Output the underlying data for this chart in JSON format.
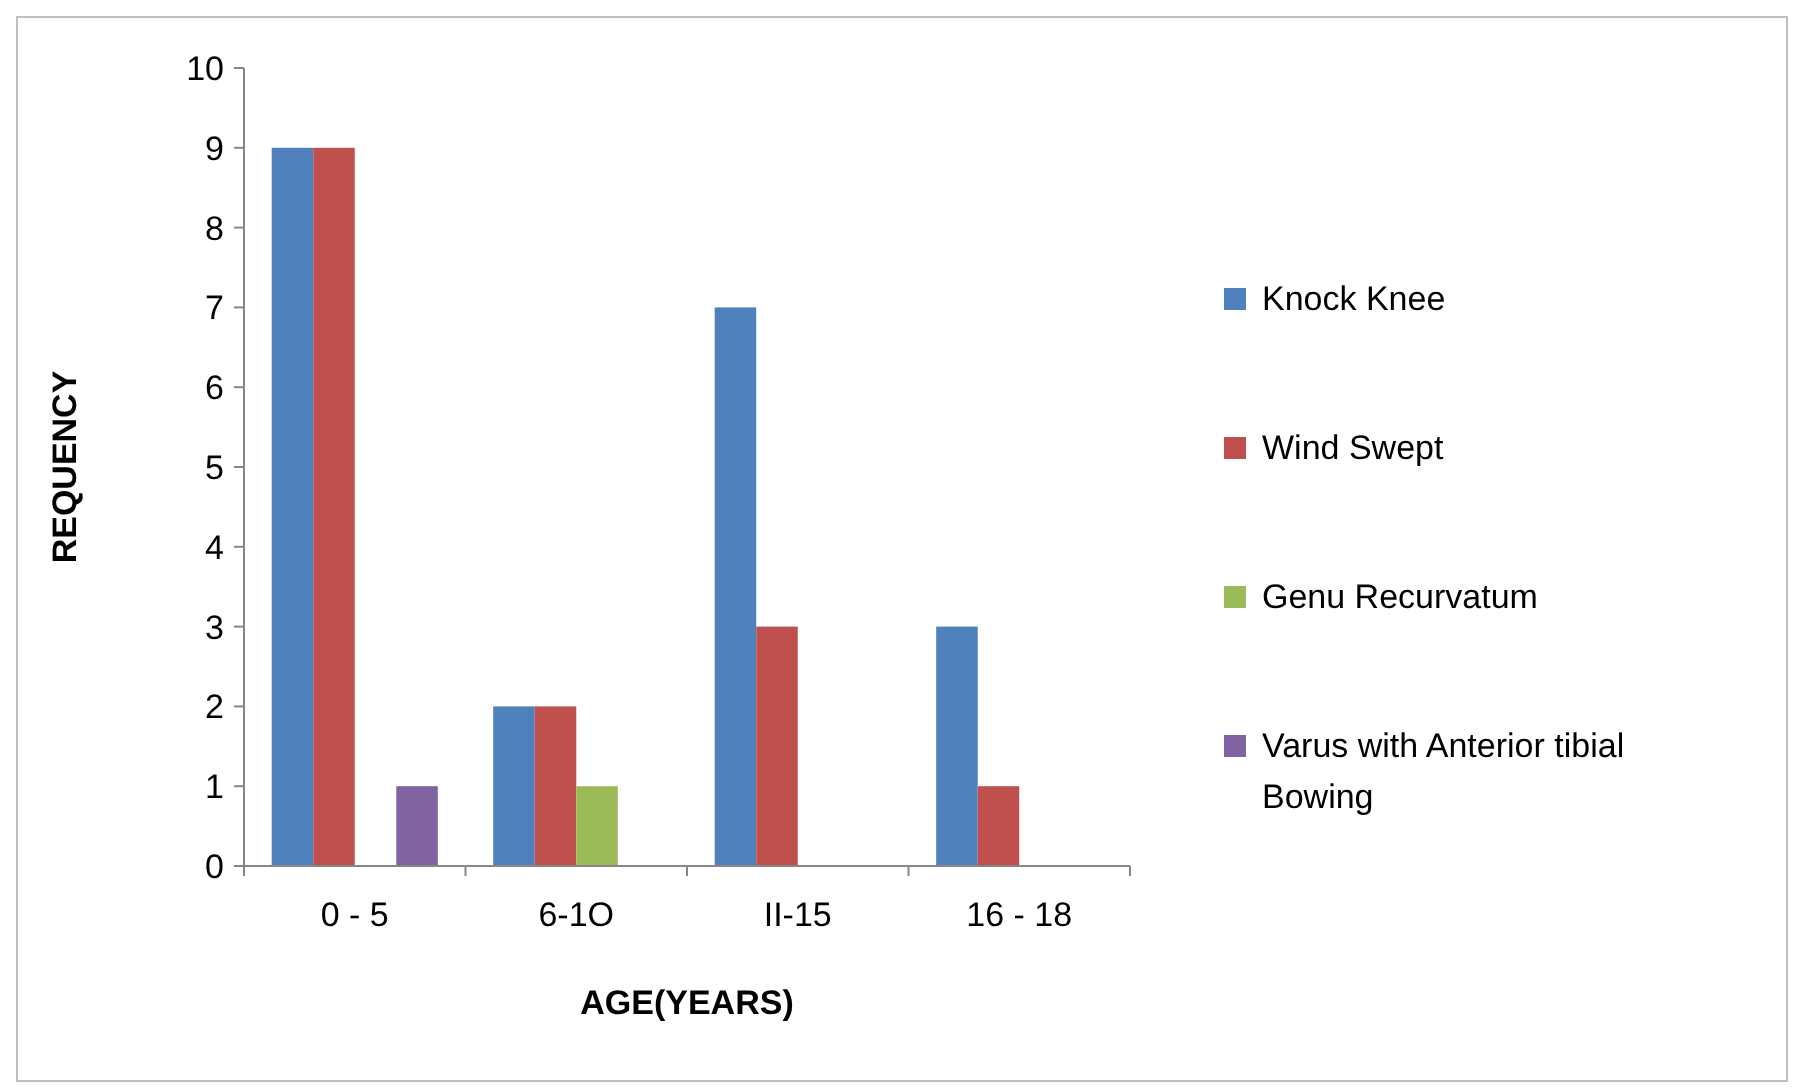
{
  "chart_data": {
    "type": "bar",
    "xlabel": "AGE(YEARS)",
    "ylabel": "REQUENCY",
    "categories": [
      "0 - 5",
      "6-1O",
      "II-15",
      "16 - 18"
    ],
    "series": [
      {
        "name": "Knock Knee",
        "color": "#4f81bd",
        "values": [
          9,
          2,
          7,
          3
        ]
      },
      {
        "name": "Wind Swept",
        "color": "#c0504d",
        "values": [
          9,
          2,
          3,
          1
        ]
      },
      {
        "name": "Genu Recurvatum",
        "color": "#9bbb59",
        "values": [
          0,
          1,
          0,
          0
        ]
      },
      {
        "name": "Varus with Anterior tibial Bowing",
        "color": "#8064a2",
        "values": [
          1,
          0,
          0,
          0
        ]
      }
    ],
    "ylim": [
      0,
      10
    ],
    "yticks": [
      0,
      1,
      2,
      3,
      4,
      5,
      6,
      7,
      8,
      9,
      10
    ],
    "grid": false,
    "legend": "right"
  }
}
